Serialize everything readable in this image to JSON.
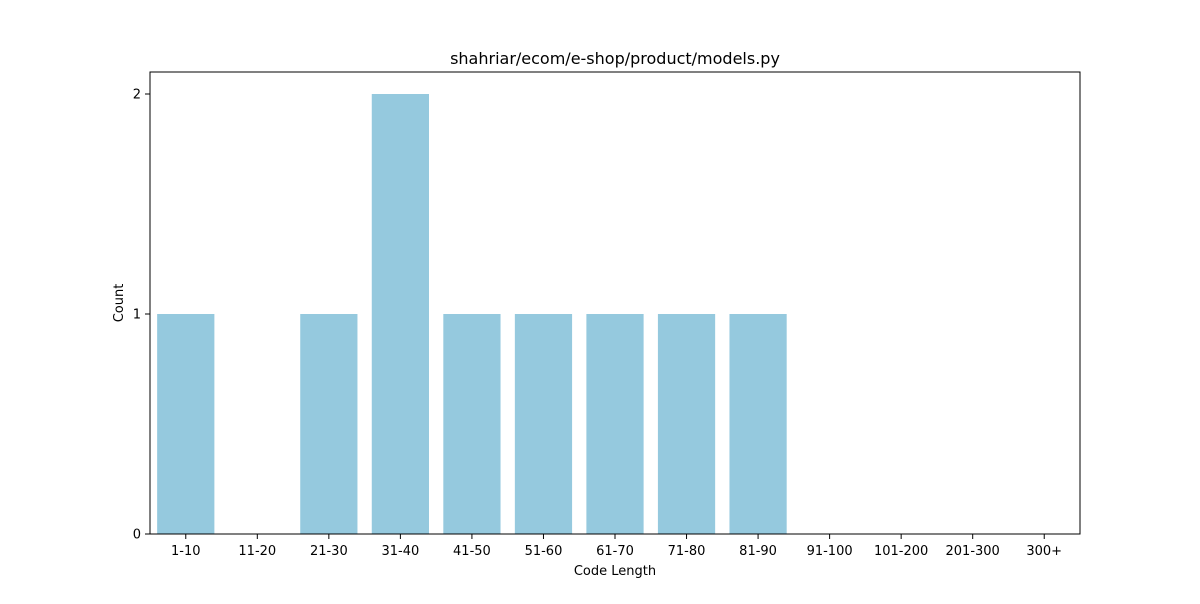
{
  "chart_data": {
    "type": "bar",
    "title": "shahriar/ecom/e-shop/product/models.py",
    "xlabel": "Code Length",
    "ylabel": "Count",
    "categories": [
      "1-10",
      "11-20",
      "21-30",
      "31-40",
      "41-50",
      "51-60",
      "61-70",
      "71-80",
      "81-90",
      "91-100",
      "101-200",
      "201-300",
      "300+"
    ],
    "values": [
      1,
      0,
      1,
      2,
      1,
      1,
      1,
      1,
      1,
      0,
      0,
      0,
      0
    ],
    "ylim": [
      0,
      2.1
    ],
    "yticks": [
      0,
      1,
      2
    ],
    "bar_color": "#95c9de",
    "grid": false,
    "legend": "none"
  }
}
